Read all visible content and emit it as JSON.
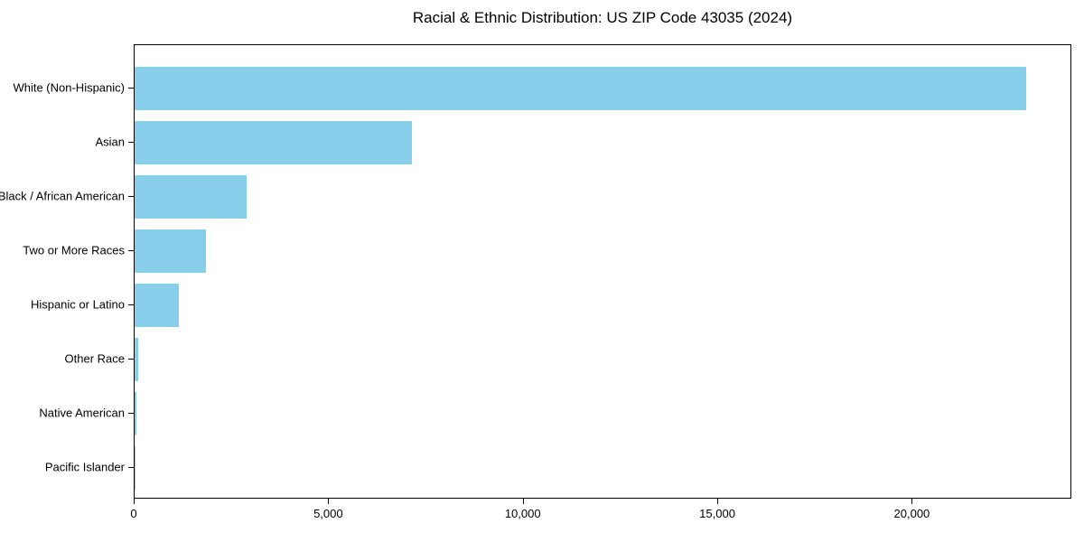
{
  "chart_data": {
    "type": "bar",
    "orientation": "horizontal",
    "title": "Racial & Ethnic Distribution: US ZIP Code 43035 (2024)",
    "categories": [
      "White (Non-Hispanic)",
      "Asian",
      "Black / African American",
      "Two or More Races",
      "Hispanic or Latino",
      "Other Race",
      "Native American",
      "Pacific Islander"
    ],
    "values": [
      22950,
      7140,
      2880,
      1840,
      1140,
      90,
      40,
      10
    ],
    "xlabel": "",
    "ylabel": "",
    "xlim": [
      0,
      24100
    ],
    "x_ticks": [
      0,
      5000,
      10000,
      15000,
      20000
    ],
    "x_tick_labels": [
      "0",
      "5,000",
      "10,000",
      "15,000",
      "20,000"
    ],
    "bar_color": "#87CEEB",
    "background_color": "#ffffff",
    "axis_color": "#000000",
    "grid": false,
    "legend": false
  }
}
